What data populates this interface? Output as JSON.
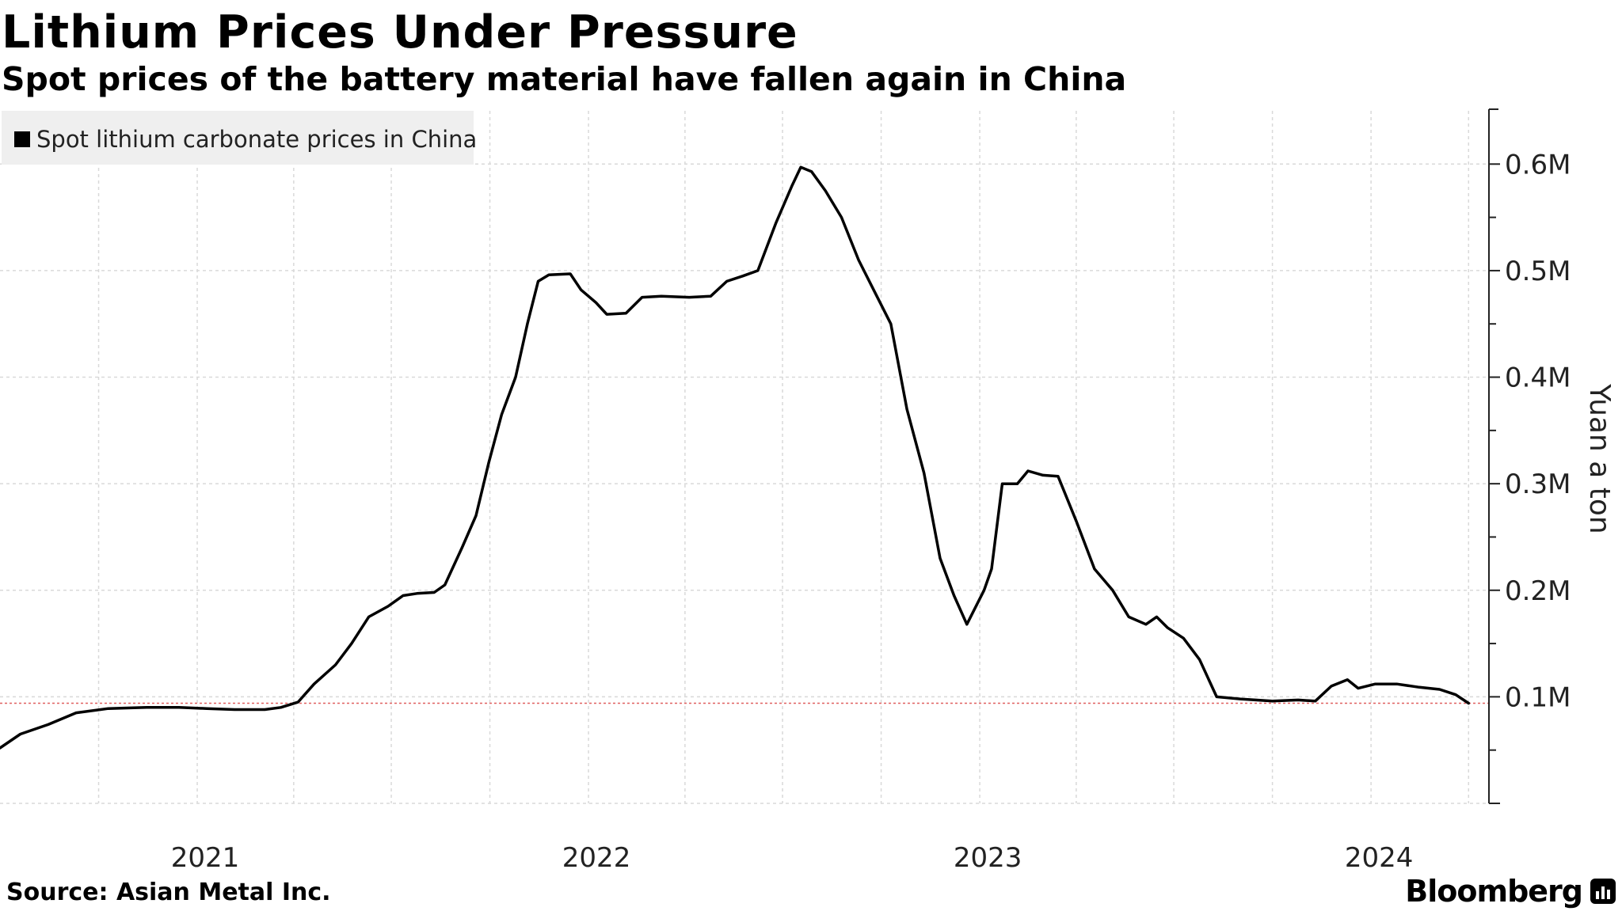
{
  "header": {
    "title": "Lithium Prices Under Pressure",
    "subtitle": "Spot prices of the battery material have fallen again in China"
  },
  "footer": {
    "source": "Source: Asian Metal Inc.",
    "brand": "Bloomberg"
  },
  "colors": {
    "line": "#000000",
    "grid": "#d9d9d9",
    "reference_line": "#e06060",
    "legend_bg": "#efefef"
  },
  "chart_data": {
    "type": "line",
    "title": "Lithium Prices Under Pressure",
    "subtitle": "Spot prices of the battery material have fallen again in China",
    "legend": [
      "Spot lithium carbonate prices in China"
    ],
    "legend_position": "top-left",
    "ylabel": "Yuan a ton",
    "y_axis_side": "right",
    "ylim": [
      0,
      650000
    ],
    "yticks": [
      100000,
      200000,
      300000,
      400000,
      500000,
      600000
    ],
    "ytick_labels": [
      "0.1M",
      "0.2M",
      "0.3M",
      "0.4M",
      "0.5M",
      "0.6M"
    ],
    "xlim": [
      "2020-07-01",
      "2024-04-20"
    ],
    "xtick_labels": [
      "2021",
      "2022",
      "2023",
      "2024"
    ],
    "xtick_positions": [
      "2021-01-01",
      "2022-01-01",
      "2023-01-01",
      "2024-01-01"
    ],
    "grid": true,
    "reference_line": {
      "y": 94000,
      "style": "dotted"
    },
    "series": [
      {
        "name": "Spot lithium carbonate prices in China",
        "points": [
          [
            "2020-07-01",
            52000
          ],
          [
            "2020-07-20",
            65000
          ],
          [
            "2020-08-15",
            74000
          ],
          [
            "2020-09-10",
            85000
          ],
          [
            "2020-10-10",
            89000
          ],
          [
            "2020-11-15",
            90000
          ],
          [
            "2020-12-15",
            90000
          ],
          [
            "2021-01-10",
            89000
          ],
          [
            "2021-02-05",
            88000
          ],
          [
            "2021-03-05",
            88000
          ],
          [
            "2021-03-20",
            90000
          ],
          [
            "2021-04-05",
            95000
          ],
          [
            "2021-04-20",
            112000
          ],
          [
            "2021-05-10",
            130000
          ],
          [
            "2021-05-25",
            150000
          ],
          [
            "2021-06-10",
            175000
          ],
          [
            "2021-06-28",
            185000
          ],
          [
            "2021-07-12",
            195000
          ],
          [
            "2021-07-25",
            197000
          ],
          [
            "2021-08-10",
            198000
          ],
          [
            "2021-08-20",
            205000
          ],
          [
            "2021-09-05",
            240000
          ],
          [
            "2021-09-18",
            270000
          ],
          [
            "2021-09-30",
            320000
          ],
          [
            "2021-10-12",
            365000
          ],
          [
            "2021-10-25",
            400000
          ],
          [
            "2021-11-05",
            450000
          ],
          [
            "2021-11-15",
            490000
          ],
          [
            "2021-11-25",
            496000
          ],
          [
            "2021-12-15",
            497000
          ],
          [
            "2021-12-25",
            482000
          ],
          [
            "2022-01-08",
            470000
          ],
          [
            "2022-01-18",
            459000
          ],
          [
            "2022-02-05",
            460000
          ],
          [
            "2022-02-20",
            475000
          ],
          [
            "2022-03-10",
            476000
          ],
          [
            "2022-04-05",
            475000
          ],
          [
            "2022-04-25",
            476000
          ],
          [
            "2022-05-10",
            490000
          ],
          [
            "2022-05-25",
            495000
          ],
          [
            "2022-06-08",
            500000
          ],
          [
            "2022-06-25",
            545000
          ],
          [
            "2022-07-10",
            580000
          ],
          [
            "2022-07-18",
            597000
          ],
          [
            "2022-07-28",
            593000
          ],
          [
            "2022-08-10",
            575000
          ],
          [
            "2022-08-25",
            550000
          ],
          [
            "2022-09-10",
            510000
          ],
          [
            "2022-09-25",
            480000
          ],
          [
            "2022-10-10",
            450000
          ],
          [
            "2022-10-25",
            370000
          ],
          [
            "2022-11-10",
            310000
          ],
          [
            "2022-11-25",
            230000
          ],
          [
            "2022-12-08",
            195000
          ],
          [
            "2022-12-20",
            168000
          ],
          [
            "2023-01-05",
            200000
          ],
          [
            "2023-01-12",
            220000
          ],
          [
            "2023-01-22",
            300000
          ],
          [
            "2023-02-05",
            300000
          ],
          [
            "2023-02-15",
            312000
          ],
          [
            "2023-03-01",
            308000
          ],
          [
            "2023-03-15",
            307000
          ],
          [
            "2023-04-01",
            265000
          ],
          [
            "2023-04-18",
            220000
          ],
          [
            "2023-05-05",
            200000
          ],
          [
            "2023-05-20",
            175000
          ],
          [
            "2023-06-05",
            168000
          ],
          [
            "2023-06-15",
            175000
          ],
          [
            "2023-06-25",
            165000
          ],
          [
            "2023-07-10",
            155000
          ],
          [
            "2023-07-25",
            135000
          ],
          [
            "2023-08-10",
            100000
          ],
          [
            "2023-09-01",
            98000
          ],
          [
            "2023-10-01",
            96000
          ],
          [
            "2023-10-25",
            97000
          ],
          [
            "2023-11-10",
            96000
          ],
          [
            "2023-11-25",
            110000
          ],
          [
            "2023-12-10",
            116000
          ],
          [
            "2023-12-20",
            108000
          ],
          [
            "2024-01-05",
            112000
          ],
          [
            "2024-01-25",
            112000
          ],
          [
            "2024-02-15",
            109000
          ],
          [
            "2024-03-05",
            107000
          ],
          [
            "2024-03-20",
            102000
          ],
          [
            "2024-04-01",
            94000
          ]
        ]
      }
    ]
  }
}
